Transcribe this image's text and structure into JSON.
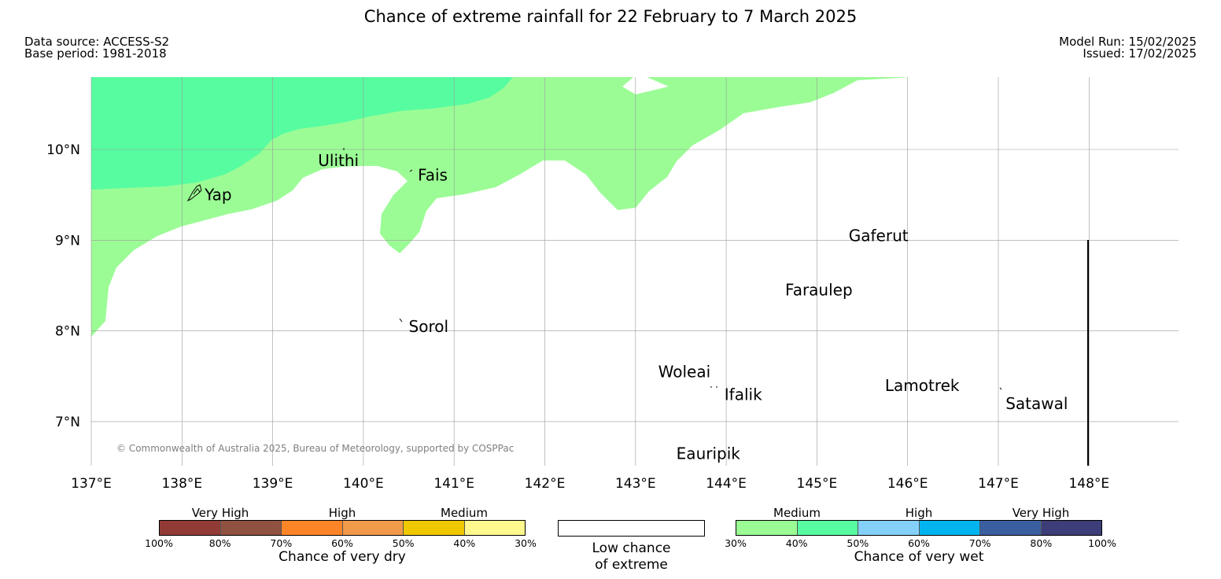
{
  "title": "Chance of extreme rainfall for 22 February to 7 March 2025",
  "meta_left": [
    "Data source: ACCESS-S2",
    "Base period: 1981-2018"
  ],
  "meta_right": [
    "Model Run: 15/02/2025",
    "Issued: 17/02/2025"
  ],
  "map": {
    "lat_ticks": [
      "10°N",
      "9°N",
      "8°N",
      "7°N"
    ],
    "lon_ticks": [
      "137°E",
      "138°E",
      "139°E",
      "140°E",
      "141°E",
      "142°E",
      "143°E",
      "144°E",
      "145°E",
      "146°E",
      "147°E",
      "148°E"
    ],
    "places": [
      {
        "name": "Yap",
        "lon": 138.25,
        "lat": 9.5
      },
      {
        "name": "Ulithi",
        "lon": 139.5,
        "lat": 9.88
      },
      {
        "name": "Fais",
        "lon": 140.6,
        "lat": 9.72
      },
      {
        "name": "Sorol",
        "lon": 140.5,
        "lat": 8.05
      },
      {
        "name": "Gaferut",
        "lon": 145.35,
        "lat": 9.05
      },
      {
        "name": "Faraulep",
        "lon": 144.65,
        "lat": 8.45
      },
      {
        "name": "Woleai",
        "lon": 143.25,
        "lat": 7.55
      },
      {
        "name": "Ifalik",
        "lon": 143.98,
        "lat": 7.3
      },
      {
        "name": "Lamotrek",
        "lon": 145.75,
        "lat": 7.4
      },
      {
        "name": "Satawal",
        "lon": 147.08,
        "lat": 7.2
      },
      {
        "name": "Eauripik",
        "lon": 143.45,
        "lat": 6.65
      }
    ],
    "copyright": "© Commonwealth of Australia 2025, Bureau of Meteorology, supported by COSPPac"
  },
  "legend": {
    "dry": {
      "categories": [
        "Very High",
        "High",
        "Medium"
      ],
      "ticks": [
        "100%",
        "80%",
        "70%",
        "60%",
        "50%",
        "40%",
        "30%"
      ],
      "colors": [
        "#923b36",
        "#8f5241",
        "#fd8427",
        "#f19a4a",
        "#f0c800",
        "#fff88f"
      ],
      "caption": "Chance of very dry"
    },
    "low": {
      "line1": "Low chance",
      "line2": "of extreme"
    },
    "wet": {
      "categories": [
        "Medium",
        "High",
        "Very High"
      ],
      "ticks": [
        "30%",
        "40%",
        "50%",
        "60%",
        "70%",
        "80%",
        "100%"
      ],
      "colors": [
        "#9bfc95",
        "#57fca0",
        "#85cffb",
        "#00b4f0",
        "#3a5fa0",
        "#3d3d79"
      ],
      "caption": "Chance of very wet"
    }
  }
}
